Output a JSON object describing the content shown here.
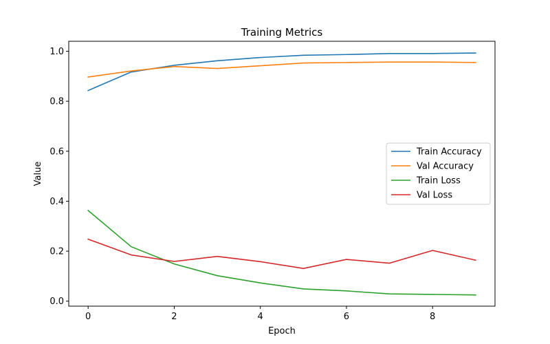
{
  "chart_data": {
    "type": "line",
    "title": "Training Metrics",
    "xlabel": "Epoch",
    "ylabel": "Value",
    "x": [
      0,
      1,
      2,
      3,
      4,
      5,
      6,
      7,
      8,
      9
    ],
    "xlim": [
      -0.45,
      9.45
    ],
    "ylim": [
      -0.02,
      1.04
    ],
    "xticks": [
      0,
      2,
      4,
      6,
      8
    ],
    "yticks": [
      0.0,
      0.2,
      0.4,
      0.6,
      0.8,
      1.0
    ],
    "xtick_labels": [
      "0",
      "2",
      "4",
      "6",
      "8"
    ],
    "ytick_labels": [
      "0.0",
      "0.2",
      "0.4",
      "0.6",
      "0.8",
      "1.0"
    ],
    "grid": false,
    "legend_position": "center-right",
    "series": [
      {
        "name": "Train Accuracy",
        "color": "#1f77b4",
        "values": [
          0.843,
          0.917,
          0.944,
          0.962,
          0.975,
          0.984,
          0.987,
          0.991,
          0.991,
          0.993
        ]
      },
      {
        "name": "Val Accuracy",
        "color": "#ff7f0e",
        "values": [
          0.897,
          0.921,
          0.939,
          0.931,
          0.942,
          0.953,
          0.955,
          0.957,
          0.957,
          0.955
        ]
      },
      {
        "name": "Train Loss",
        "color": "#2ca02c",
        "values": [
          0.363,
          0.218,
          0.149,
          0.102,
          0.073,
          0.049,
          0.041,
          0.029,
          0.027,
          0.025
        ]
      },
      {
        "name": "Val Loss",
        "color": "#d62728",
        "values": [
          0.248,
          0.185,
          0.159,
          0.179,
          0.158,
          0.131,
          0.167,
          0.152,
          0.203,
          0.164
        ]
      }
    ]
  }
}
